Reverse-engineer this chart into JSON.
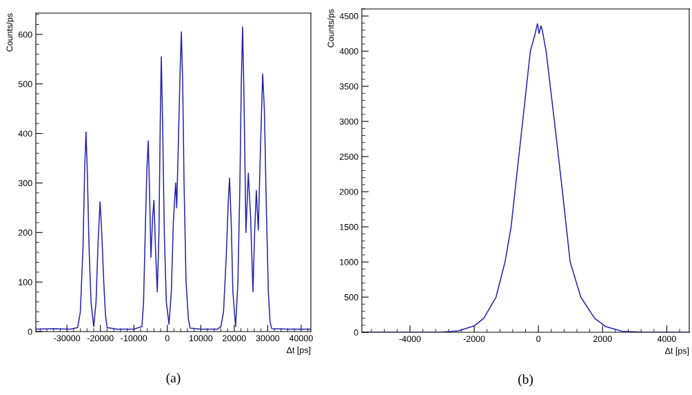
{
  "chart_data": [
    {
      "type": "line",
      "xlabel": "Δt [ps]",
      "ylabel": "Counts/ps",
      "annotations": [
        "(a)"
      ],
      "xlim": [
        -39300,
        42900
      ],
      "ylim": [
        0,
        643
      ],
      "xticks": [
        -30000,
        -20000,
        -10000,
        0,
        10000,
        20000,
        30000,
        40000
      ],
      "yticks": [
        0,
        100,
        200,
        300,
        400,
        500,
        600
      ],
      "grid": false,
      "legend": false,
      "series": [
        {
          "color": "#2222b0",
          "x": [
            -39300,
            -34000,
            -29000,
            -26800,
            -26000,
            -25200,
            -24700,
            -24300,
            -23900,
            -23400,
            -22800,
            -22000,
            -21300,
            -20700,
            -20100,
            -19600,
            -19000,
            -18500,
            -18000,
            -15000,
            -10000,
            -7600,
            -7100,
            -6600,
            -6100,
            -5700,
            -5300,
            -4900,
            -4400,
            -4000,
            -3500,
            -3000,
            -2500,
            -2100,
            -1800,
            -1400,
            -900,
            -300,
            500,
            1200,
            1800,
            2300,
            2500,
            2800,
            3300,
            3800,
            4200,
            4600,
            5000,
            5600,
            6300,
            6800,
            10000,
            15000,
            16000,
            16800,
            17600,
            18200,
            18600,
            19100,
            19600,
            20400,
            21100,
            21700,
            22100,
            22500,
            22900,
            23500,
            24200,
            24900,
            25600,
            26100,
            26600,
            27200,
            27800,
            28500,
            29000,
            29600,
            30200,
            30700,
            31200,
            36000,
            42900
          ],
          "values": [
            5,
            6,
            5,
            8,
            40,
            170,
            330,
            403,
            320,
            170,
            60,
            10,
            60,
            180,
            262,
            200,
            100,
            35,
            8,
            5,
            5,
            10,
            60,
            200,
            330,
            385,
            280,
            150,
            230,
            265,
            160,
            80,
            200,
            430,
            555,
            420,
            200,
            60,
            15,
            80,
            220,
            280,
            300,
            250,
            380,
            520,
            605,
            500,
            300,
            100,
            25,
            7,
            5,
            5,
            10,
            40,
            150,
            260,
            310,
            220,
            80,
            10,
            100,
            300,
            500,
            615,
            480,
            200,
            320,
            230,
            80,
            200,
            285,
            205,
            360,
            520,
            450,
            250,
            80,
            20,
            6,
            5,
            5
          ]
        }
      ]
    },
    {
      "type": "line",
      "xlabel": "Δt [ps]",
      "ylabel": "Counts/ps",
      "annotations": [
        "(b)"
      ],
      "xlim": [
        -5500,
        4700
      ],
      "ylim": [
        0,
        4600
      ],
      "xticks": [
        -4000,
        -2000,
        0,
        2000,
        4000
      ],
      "yticks": [
        0,
        500,
        1000,
        1500,
        2000,
        2500,
        3000,
        3500,
        4000,
        4500
      ],
      "grid": false,
      "legend": false,
      "series": [
        {
          "color": "#2222b0",
          "x": [
            -5500,
            -3000,
            -2500,
            -2000,
            -1700,
            -1320,
            -1040,
            -850,
            -730,
            -490,
            -250,
            -100,
            -30,
            20,
            80,
            120,
            240,
            500,
            750,
            870,
            990,
            1320,
            1750,
            2100,
            2600,
            3200,
            4700
          ],
          "values": [
            0,
            2,
            20,
            90,
            200,
            500,
            1000,
            1500,
            2000,
            3000,
            4000,
            4250,
            4390,
            4250,
            4360,
            4300,
            4000,
            3000,
            2000,
            1500,
            1000,
            500,
            200,
            80,
            15,
            2,
            0
          ]
        }
      ]
    }
  ]
}
